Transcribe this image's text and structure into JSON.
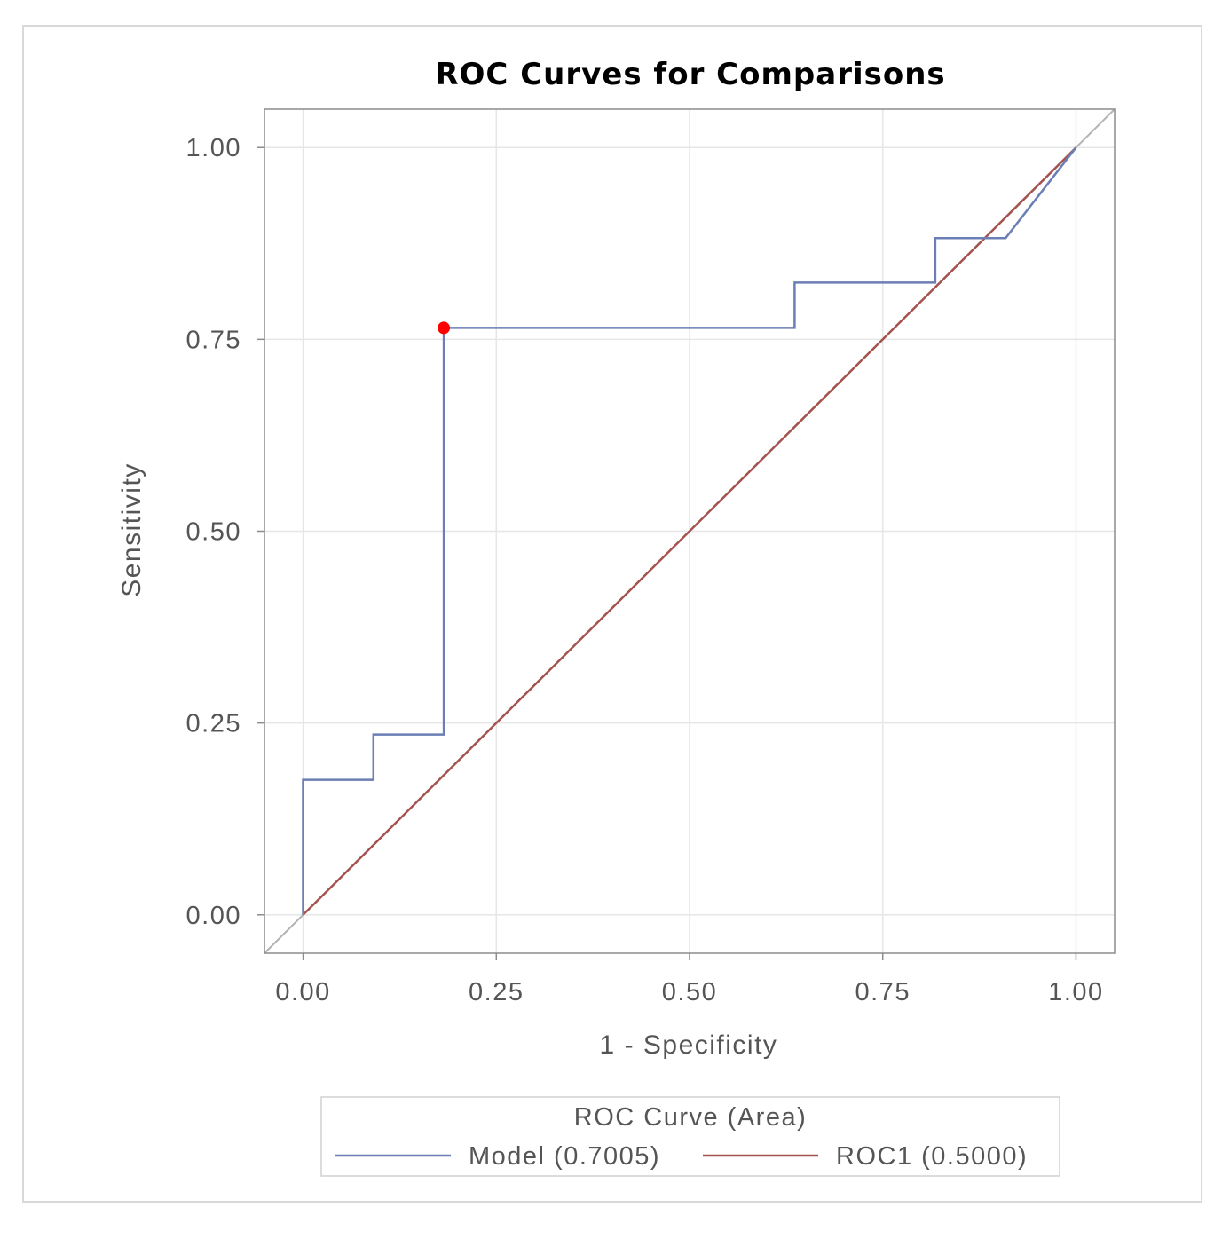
{
  "chart_data": {
    "type": "line",
    "title": "ROC Curves for Comparisons",
    "xlabel": "1 - Specificity",
    "ylabel": "Sensitivity",
    "xlim": [
      -0.05,
      1.05
    ],
    "ylim": [
      -0.05,
      1.05
    ],
    "x_ticks": [
      0.0,
      0.25,
      0.5,
      0.75,
      1.0
    ],
    "x_tick_labels": [
      "0.00",
      "0.25",
      "0.50",
      "0.75",
      "1.00"
    ],
    "y_ticks": [
      0.0,
      0.25,
      0.5,
      0.75,
      1.0
    ],
    "y_tick_labels": [
      "0.00",
      "0.25",
      "0.50",
      "0.75",
      "1.00"
    ],
    "grid": true,
    "legend": {
      "title": "ROC Curve (Area)",
      "placement": "bottom"
    },
    "series": [
      {
        "name": "Model",
        "area_label": "(0.7005)",
        "color": "#6b7fb5",
        "x": [
          0.0,
          0.0,
          0.091,
          0.091,
          0.182,
          0.182,
          0.636,
          0.636,
          0.818,
          0.818,
          0.909,
          1.0
        ],
        "y": [
          0.0,
          0.176,
          0.176,
          0.235,
          0.235,
          0.765,
          0.765,
          0.824,
          0.824,
          0.882,
          0.882,
          1.0
        ]
      },
      {
        "name": "ROC1",
        "area_label": "(0.5000)",
        "color": "#a4534f",
        "x": [
          0.0,
          1.0
        ],
        "y": [
          0.0,
          1.0
        ]
      }
    ],
    "reference_line": {
      "color": "#b3b3b3",
      "x": [
        -0.05,
        1.05
      ],
      "y": [
        -0.05,
        1.05
      ]
    },
    "highlight_point": {
      "x": 0.182,
      "y": 0.765,
      "color": "#ff0000"
    }
  }
}
